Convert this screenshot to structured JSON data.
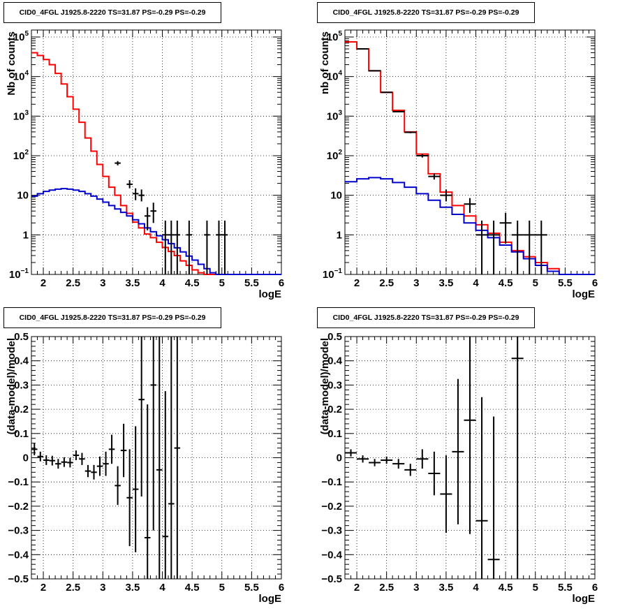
{
  "chart_data": [
    {
      "id": "top-left",
      "type": "histogram-log",
      "title": "CID0_4FGL J1925.8-2220 TS=31.87 PS=-0.29 PS=-0.29",
      "xlabel": "logE",
      "ylabel": "Nb of counts",
      "xlim": [
        1.8,
        6.0
      ],
      "ylim": [
        0.1,
        150000
      ],
      "log_y": true,
      "grid": true,
      "x_ticks": [
        "2",
        "2.5",
        "3",
        "3.5",
        "4",
        "4.5",
        "5",
        "5.5",
        "6"
      ],
      "y_ticks": [
        {
          "v": 0.1,
          "base": "10",
          "exp": "−1"
        },
        {
          "v": 1,
          "label": "1"
        },
        {
          "v": 10,
          "label": "10"
        },
        {
          "v": 100,
          "base": "10",
          "exp": "2"
        },
        {
          "v": 1000,
          "base": "10",
          "exp": "3"
        },
        {
          "v": 10000,
          "base": "10",
          "exp": "4"
        },
        {
          "v": 100000,
          "base": "10",
          "exp": "5"
        }
      ],
      "bin_width": 0.1,
      "bin_start": 1.8,
      "series": [
        {
          "role": "total-model",
          "color": "#ff0000",
          "values": [
            40000,
            34000,
            27000,
            20000,
            12000,
            6500,
            3100,
            1500,
            700,
            280,
            130,
            60,
            30,
            16,
            10,
            5.5,
            3.5,
            2.1,
            1.5,
            1.05,
            0.85,
            0.65,
            0.48,
            0.38,
            0.3,
            0.22,
            0.17,
            0.13,
            0.11,
            0.1,
            0.1,
            0.1,
            0.1,
            0.1,
            0.1,
            0.1,
            0.1,
            0.1,
            0.1,
            0.1,
            0.1,
            0.1
          ]
        },
        {
          "role": "source-model",
          "color": "#0000cc",
          "values": [
            9.5,
            11,
            12.5,
            13.5,
            14.3,
            14.7,
            14.3,
            13.5,
            12.5,
            11,
            9.5,
            8,
            6.7,
            5.5,
            4.5,
            3.7,
            3.0,
            2.4,
            1.9,
            1.5,
            1.2,
            0.95,
            0.75,
            0.6,
            0.47,
            0.37,
            0.29,
            0.23,
            0.18,
            0.14,
            0.11,
            0.1,
            0.1,
            0.1,
            0.1,
            0.1,
            0.1,
            0.1,
            0.1,
            0.1,
            0.1,
            0.1
          ]
        }
      ],
      "data_points": [
        {
          "x": 3.25,
          "y": 65,
          "lo": 57,
          "hi": 73
        },
        {
          "x": 3.45,
          "y": 19,
          "lo": 15,
          "hi": 24
        },
        {
          "x": 3.55,
          "y": 11,
          "lo": 7.5,
          "hi": 15
        },
        {
          "x": 3.65,
          "y": 10,
          "lo": 7,
          "hi": 14
        },
        {
          "x": 3.75,
          "y": 3,
          "lo": 1.3,
          "hi": 5
        },
        {
          "x": 3.85,
          "y": 4,
          "lo": 2,
          "hi": 6.5
        },
        {
          "x": 4.05,
          "y": 1,
          "lo": 0.1,
          "hi": 2.3
        },
        {
          "x": 4.15,
          "y": 1,
          "lo": 0.1,
          "hi": 2.3
        },
        {
          "x": 4.25,
          "y": 1,
          "lo": 0.1,
          "hi": 2.3
        },
        {
          "x": 4.45,
          "y": 1,
          "lo": 0.1,
          "hi": 2.3
        },
        {
          "x": 4.75,
          "y": 1,
          "lo": 0.1,
          "hi": 2.3
        },
        {
          "x": 4.95,
          "y": 1,
          "lo": 0.1,
          "hi": 2.3
        },
        {
          "x": 5.05,
          "y": 1,
          "lo": 0.1,
          "hi": 2.3
        }
      ]
    },
    {
      "id": "top-right",
      "type": "histogram-log",
      "title": "CID0_4FGL J1925.8-2220 TS=31.87 PS=-0.29 PS=-0.29",
      "xlabel": "logE",
      "ylabel": "nb of counts",
      "xlim": [
        1.8,
        6.0
      ],
      "ylim": [
        0.1,
        150000
      ],
      "log_y": true,
      "grid": true,
      "x_ticks": [
        "2",
        "2.5",
        "3",
        "3.5",
        "4",
        "4.5",
        "5",
        "5.5",
        "6"
      ],
      "y_ticks": [
        {
          "v": 0.1,
          "base": "10",
          "exp": "−1"
        },
        {
          "v": 1,
          "label": "1"
        },
        {
          "v": 10,
          "label": "10"
        },
        {
          "v": 100,
          "base": "10",
          "exp": "2"
        },
        {
          "v": 1000,
          "base": "10",
          "exp": "3"
        },
        {
          "v": 10000,
          "base": "10",
          "exp": "4"
        },
        {
          "v": 100000,
          "base": "10",
          "exp": "5"
        }
      ],
      "bin_width": 0.2,
      "bin_start": 1.8,
      "series": [
        {
          "role": "total-model",
          "color": "#ff0000",
          "values": [
            75000,
            50000,
            14000,
            4000,
            1400,
            400,
            110,
            35,
            12,
            5.5,
            3.0,
            1.8,
            1.1,
            0.65,
            0.4,
            0.28,
            0.2,
            0.14,
            0.1,
            0.1,
            0.1
          ]
        },
        {
          "role": "source-model",
          "color": "#0000cc",
          "values": [
            22,
            26,
            28,
            26,
            21,
            16,
            11,
            7.5,
            5,
            3.3,
            2.0,
            1.3,
            0.85,
            0.55,
            0.37,
            0.25,
            0.17,
            0.12,
            0.1,
            0.1,
            0.1
          ]
        }
      ],
      "data_points": [
        {
          "x": 2.1,
          "y": 50000,
          "lo": 49500,
          "hi": 50500
        },
        {
          "x": 2.3,
          "y": 14000,
          "lo": 13800,
          "hi": 14200
        },
        {
          "x": 2.5,
          "y": 4000,
          "lo": 3940,
          "hi": 4060
        },
        {
          "x": 2.7,
          "y": 1300,
          "lo": 1260,
          "hi": 1340
        },
        {
          "x": 2.9,
          "y": 390,
          "lo": 370,
          "hi": 410
        },
        {
          "x": 3.1,
          "y": 100,
          "lo": 90,
          "hi": 110
        },
        {
          "x": 3.3,
          "y": 30,
          "lo": 25,
          "hi": 36
        },
        {
          "x": 3.5,
          "y": 10,
          "lo": 7,
          "hi": 14
        },
        {
          "x": 3.9,
          "y": 6,
          "lo": 3.6,
          "hi": 8.5
        },
        {
          "x": 4.1,
          "y": 1,
          "lo": 0.1,
          "hi": 2.3
        },
        {
          "x": 4.3,
          "y": 1,
          "lo": 0.1,
          "hi": 2.3
        },
        {
          "x": 4.5,
          "y": 2,
          "lo": 0.6,
          "hi": 3.6
        },
        {
          "x": 4.7,
          "y": 1,
          "lo": 0.1,
          "hi": 2.3
        },
        {
          "x": 4.9,
          "y": 1,
          "lo": 0.1,
          "hi": 2.3
        },
        {
          "x": 5.1,
          "y": 1,
          "lo": 0.1,
          "hi": 2.3
        }
      ]
    },
    {
      "id": "bottom-left",
      "type": "residual",
      "title": "CID0_4FGL J1925.8-2220 TS=31.87 PS=-0.29 PS=-0.29",
      "xlabel": "logE",
      "ylabel": "(data-model)/model",
      "xlim": [
        1.8,
        6.0
      ],
      "ylim": [
        -0.5,
        0.5
      ],
      "grid": true,
      "x_ticks": [
        "2",
        "2.5",
        "3",
        "3.5",
        "4",
        "4.5",
        "5",
        "5.5",
        "6"
      ],
      "y_ticks": [
        "−0.5",
        "−0.4",
        "−0.3",
        "−0.2",
        "−0.1",
        "0",
        "0.1",
        "0.2",
        "0.3",
        "0.4",
        "0.5"
      ],
      "bin_width": 0.1,
      "points": [
        {
          "x": 1.85,
          "y": 0.035,
          "err": 0.025
        },
        {
          "x": 1.95,
          "y": 0.005,
          "err": 0.02
        },
        {
          "x": 2.05,
          "y": -0.01,
          "err": 0.02
        },
        {
          "x": 2.15,
          "y": -0.012,
          "err": 0.02
        },
        {
          "x": 2.25,
          "y": -0.025,
          "err": 0.02
        },
        {
          "x": 2.35,
          "y": -0.018,
          "err": 0.02
        },
        {
          "x": 2.45,
          "y": -0.02,
          "err": 0.02
        },
        {
          "x": 2.55,
          "y": 0.01,
          "err": 0.02
        },
        {
          "x": 2.65,
          "y": -0.005,
          "err": 0.025
        },
        {
          "x": 2.75,
          "y": -0.055,
          "err": 0.025
        },
        {
          "x": 2.85,
          "y": -0.06,
          "err": 0.03
        },
        {
          "x": 2.95,
          "y": -0.035,
          "err": 0.04
        },
        {
          "x": 3.05,
          "y": -0.025,
          "err": 0.05
        },
        {
          "x": 3.15,
          "y": 0.035,
          "err": 0.06
        },
        {
          "x": 3.25,
          "y": -0.115,
          "err": 0.08
        },
        {
          "x": 3.35,
          "y": 0.03,
          "err": 0.11
        },
        {
          "x": 3.45,
          "y": -0.165,
          "err": 0.2
        },
        {
          "x": 3.55,
          "y": -0.13,
          "err": 0.26
        },
        {
          "x": 3.65,
          "y": 0.24,
          "err": 0.4
        },
        {
          "x": 3.75,
          "y": -0.33,
          "err": 0.55
        },
        {
          "x": 3.85,
          "y": 0.3,
          "err": 0.6
        },
        {
          "x": 3.95,
          "y": -0.05,
          "err": 0.6
        },
        {
          "x": 4.05,
          "y": -0.325,
          "err": 0.6
        },
        {
          "x": 4.15,
          "y": -0.19,
          "err": 0.7
        },
        {
          "x": 4.25,
          "y": 0.04,
          "err": 0.7
        }
      ]
    },
    {
      "id": "bottom-right",
      "type": "residual",
      "title": "CID0_4FGL J1925.8-2220 TS=31.87 PS=-0.29 PS=-0.29",
      "xlabel": "logE",
      "ylabel": "(data-model)/model",
      "xlim": [
        1.8,
        6.0
      ],
      "ylim": [
        -0.5,
        0.5
      ],
      "grid": true,
      "x_ticks": [
        "2",
        "2.5",
        "3",
        "3.5",
        "4",
        "4.5",
        "5",
        "5.5",
        "6"
      ],
      "y_ticks": [
        "−0.5",
        "−0.4",
        "−0.3",
        "−0.2",
        "−0.1",
        "0",
        "0.1",
        "0.2",
        "0.3",
        "0.4",
        "0.5"
      ],
      "bin_width": 0.2,
      "points": [
        {
          "x": 1.9,
          "y": 0.02,
          "err": 0.015
        },
        {
          "x": 2.1,
          "y": -0.005,
          "err": 0.015
        },
        {
          "x": 2.3,
          "y": -0.02,
          "err": 0.015
        },
        {
          "x": 2.5,
          "y": -0.01,
          "err": 0.015
        },
        {
          "x": 2.7,
          "y": -0.025,
          "err": 0.02
        },
        {
          "x": 2.9,
          "y": -0.05,
          "err": 0.025
        },
        {
          "x": 3.1,
          "y": -0.005,
          "err": 0.04
        },
        {
          "x": 3.3,
          "y": -0.065,
          "err": 0.09
        },
        {
          "x": 3.5,
          "y": -0.15,
          "err": 0.16
        },
        {
          "x": 3.7,
          "y": 0.025,
          "err": 0.3
        },
        {
          "x": 3.9,
          "y": 0.155,
          "err": 0.47
        },
        {
          "x": 4.1,
          "y": -0.26,
          "err": 0.51
        },
        {
          "x": 4.3,
          "y": -0.42,
          "err": 0.59
        },
        {
          "x": 4.7,
          "y": 0.41,
          "err": 0.95
        }
      ]
    }
  ],
  "colors": {
    "frame": "#000000",
    "grid": "#000000",
    "data": "#000000"
  }
}
